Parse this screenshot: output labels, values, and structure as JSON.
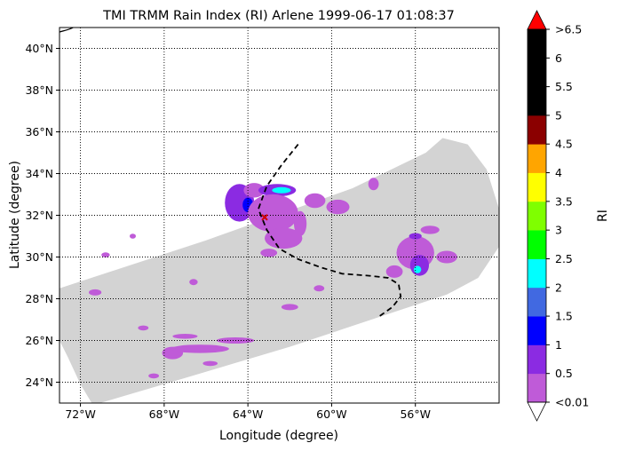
{
  "figure": {
    "title": "TMI TRMM Rain Index (RI) Arlene 1999-06-17 01:08:37",
    "xlabel": "Longitude (degree)",
    "ylabel": "Latitude (degree)",
    "colorbar_label": "RI"
  },
  "map": {
    "lon_range": [
      -73,
      -52
    ],
    "lat_range": [
      23,
      41
    ],
    "xticks": [
      {
        "value": -72,
        "label": "72°W"
      },
      {
        "value": -68,
        "label": "68°W"
      },
      {
        "value": -64,
        "label": "64°W"
      },
      {
        "value": -60,
        "label": "60°W"
      },
      {
        "value": -56,
        "label": "56°W"
      }
    ],
    "yticks": [
      {
        "value": 24,
        "label": "24°N"
      },
      {
        "value": 26,
        "label": "26°N"
      },
      {
        "value": 28,
        "label": "28°N"
      },
      {
        "value": 30,
        "label": "30°N"
      },
      {
        "value": 32,
        "label": "32°N"
      },
      {
        "value": 34,
        "label": "34°N"
      },
      {
        "value": 36,
        "label": "36°N"
      },
      {
        "value": 38,
        "label": "38°N"
      },
      {
        "value": 40,
        "label": "40°N"
      }
    ],
    "grid": "dotted",
    "swath_color": "#d3d3d3",
    "track_style": "dashed black",
    "storm_center_marker": "red x",
    "track": [
      [
        -61.6,
        35.4
      ],
      [
        -62.4,
        34.4
      ],
      [
        -63.1,
        33.4
      ],
      [
        -63.5,
        32.3
      ],
      [
        -63.1,
        31.3
      ],
      [
        -62.5,
        30.4
      ],
      [
        -61.6,
        29.9
      ],
      [
        -60.5,
        29.5
      ],
      [
        -59.5,
        29.2
      ],
      [
        -58.2,
        29.1
      ],
      [
        -57.3,
        29.0
      ],
      [
        -56.8,
        28.7
      ],
      [
        -56.7,
        28.1
      ],
      [
        -57.1,
        27.6
      ],
      [
        -57.8,
        27.1
      ]
    ],
    "storm_center": [
      -63.2,
      31.9
    ],
    "rain_cells": [
      {
        "lon": -64.4,
        "lat": 32.6,
        "rx": 0.7,
        "ry": 0.9,
        "level": 1
      },
      {
        "lon": -64.0,
        "lat": 32.5,
        "rx": 0.25,
        "ry": 0.35,
        "level": 2
      },
      {
        "lon": -63.7,
        "lat": 33.2,
        "rx": 0.5,
        "ry": 0.35,
        "level": 0
      },
      {
        "lon": -62.6,
        "lat": 33.2,
        "rx": 0.9,
        "ry": 0.3,
        "level": 1
      },
      {
        "lon": -62.4,
        "lat": 33.2,
        "rx": 0.45,
        "ry": 0.15,
        "level": 4
      },
      {
        "lon": -62.8,
        "lat": 32.1,
        "rx": 1.2,
        "ry": 0.9,
        "level": 0
      },
      {
        "lon": -62.3,
        "lat": 30.9,
        "rx": 0.9,
        "ry": 0.5,
        "level": 0
      },
      {
        "lon": -63.0,
        "lat": 30.2,
        "rx": 0.4,
        "ry": 0.2,
        "level": 0
      },
      {
        "lon": -61.5,
        "lat": 31.6,
        "rx": 0.3,
        "ry": 0.6,
        "level": 0
      },
      {
        "lon": -60.8,
        "lat": 32.7,
        "rx": 0.5,
        "ry": 0.35,
        "level": 0
      },
      {
        "lon": -59.7,
        "lat": 32.4,
        "rx": 0.55,
        "ry": 0.35,
        "level": 0
      },
      {
        "lon": -58.0,
        "lat": 33.5,
        "rx": 0.25,
        "ry": 0.3,
        "level": 0
      },
      {
        "lon": -56.0,
        "lat": 30.2,
        "rx": 0.9,
        "ry": 0.8,
        "level": 0
      },
      {
        "lon": -55.8,
        "lat": 29.6,
        "rx": 0.45,
        "ry": 0.5,
        "level": 1
      },
      {
        "lon": -55.9,
        "lat": 29.4,
        "rx": 0.18,
        "ry": 0.18,
        "level": 4
      },
      {
        "lon": -56.0,
        "lat": 31.0,
        "rx": 0.3,
        "ry": 0.15,
        "level": 1
      },
      {
        "lon": -54.5,
        "lat": 30.0,
        "rx": 0.5,
        "ry": 0.3,
        "level": 0
      },
      {
        "lon": -57.0,
        "lat": 29.3,
        "rx": 0.4,
        "ry": 0.3,
        "level": 0
      },
      {
        "lon": -55.3,
        "lat": 31.3,
        "rx": 0.45,
        "ry": 0.2,
        "level": 0
      },
      {
        "lon": -67.6,
        "lat": 25.4,
        "rx": 0.5,
        "ry": 0.3,
        "level": 0
      },
      {
        "lon": -66.3,
        "lat": 25.6,
        "rx": 1.4,
        "ry": 0.2,
        "level": 0
      },
      {
        "lon": -64.6,
        "lat": 26.0,
        "rx": 0.9,
        "ry": 0.15,
        "level": 0
      },
      {
        "lon": -67.0,
        "lat": 26.2,
        "rx": 0.6,
        "ry": 0.12,
        "level": 0
      },
      {
        "lon": -65.8,
        "lat": 24.9,
        "rx": 0.35,
        "ry": 0.12,
        "level": 0
      },
      {
        "lon": -71.3,
        "lat": 28.3,
        "rx": 0.3,
        "ry": 0.15,
        "level": 0
      },
      {
        "lon": -69.0,
        "lat": 26.6,
        "rx": 0.25,
        "ry": 0.12,
        "level": 0
      },
      {
        "lon": -62.0,
        "lat": 27.6,
        "rx": 0.4,
        "ry": 0.15,
        "level": 0
      },
      {
        "lon": -60.6,
        "lat": 28.5,
        "rx": 0.25,
        "ry": 0.15,
        "level": 0
      },
      {
        "lon": -68.5,
        "lat": 24.3,
        "rx": 0.25,
        "ry": 0.12,
        "level": 0
      },
      {
        "lon": -70.8,
        "lat": 30.1,
        "rx": 0.2,
        "ry": 0.12,
        "level": 0
      },
      {
        "lon": -66.6,
        "lat": 28.8,
        "rx": 0.2,
        "ry": 0.15,
        "level": 0
      },
      {
        "lon": -69.5,
        "lat": 31.0,
        "rx": 0.15,
        "ry": 0.12,
        "level": 0
      }
    ]
  },
  "colorbar": {
    "colors": [
      "#bf5bd8",
      "#8b2be2",
      "#0000ff",
      "#4169e1",
      "#00ffff",
      "#00ff00",
      "#7fff00",
      "#ffff00",
      "#ffa500",
      "#8b0000",
      "#000000",
      "#000000",
      "#000000"
    ],
    "over_color": "#ff0000",
    "under_color": "#ffffff",
    "tick_labels": [
      "<0.01",
      "0.5",
      "1",
      "1.5",
      "2",
      "2.5",
      "3",
      "3.5",
      "4",
      "4.5",
      "5",
      "5.5",
      "6",
      ">6.5"
    ]
  }
}
